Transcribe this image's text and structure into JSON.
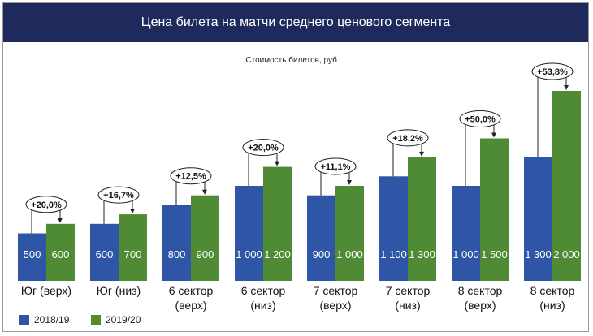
{
  "chart_data": {
    "type": "bar",
    "title": "Цена билета на матчи среднего ценового сегмента",
    "subtitle": "Стоимость билетов, руб.",
    "categories": [
      "Юг (верх)",
      "Юг (низ)",
      "6 сектор (верх)",
      "6 сектор (низ)",
      "7 сектор (верх)",
      "7 сектор (низ)",
      "8 сектор (верх)",
      "8 сектор (низ)"
    ],
    "series": [
      {
        "name": "2018/19",
        "values": [
          500,
          600,
          800,
          1000,
          900,
          1100,
          1000,
          1300
        ],
        "labels": [
          "500",
          "600",
          "800",
          "1 000",
          "900",
          "1 100",
          "1 000",
          "1 300"
        ],
        "color": "#2f56a6"
      },
      {
        "name": "2019/20",
        "values": [
          600,
          700,
          900,
          1200,
          1000,
          1300,
          1500,
          2000
        ],
        "labels": [
          "600",
          "700",
          "900",
          "1 200",
          "1 000",
          "1 300",
          "1 500",
          "2 000"
        ],
        "color": "#4f8a35"
      }
    ],
    "annotations": [
      "+20,0%",
      "+16,7%",
      "+12,5%",
      "+20,0%",
      "+11,1%",
      "+18,2%",
      "+50,0%",
      "+53,8%"
    ],
    "ylim": [
      0,
      2000
    ],
    "grid": false,
    "legend": "bottom-left"
  }
}
